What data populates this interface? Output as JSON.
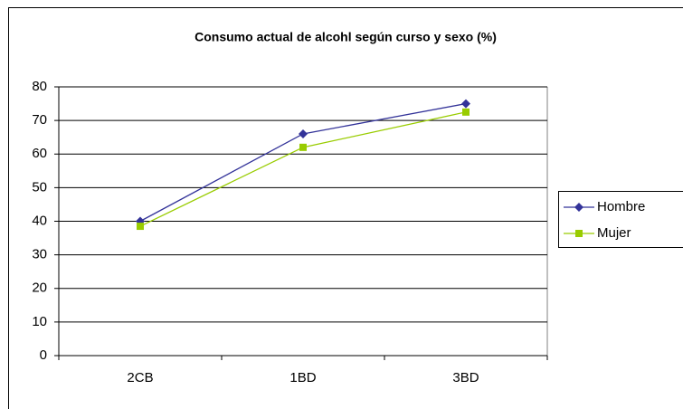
{
  "chart_data": {
    "type": "line",
    "title": "Consumo actual de alcohl según curso y sexo (%)",
    "categories": [
      "2CB",
      "1BD",
      "3BD"
    ],
    "series": [
      {
        "name": "Hombre",
        "color": "#333399",
        "marker": "diamond",
        "values": [
          40,
          66,
          75
        ]
      },
      {
        "name": "Mujer",
        "color": "#99cc00",
        "marker": "square",
        "values": [
          38.5,
          62,
          72.5
        ]
      }
    ],
    "ylim": [
      0,
      80
    ],
    "yticks": [
      0,
      10,
      20,
      30,
      40,
      50,
      60,
      70,
      80
    ],
    "grid": true,
    "legend": "right"
  }
}
